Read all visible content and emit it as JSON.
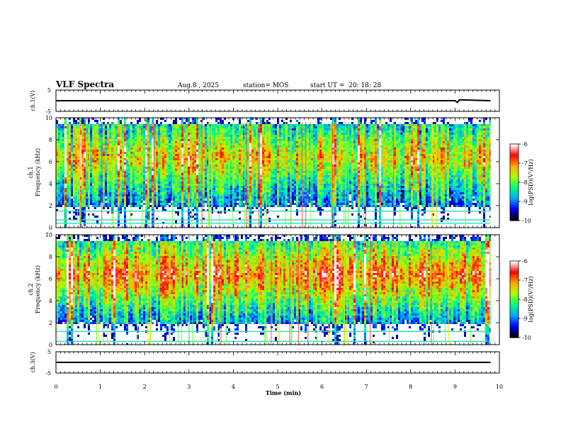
{
  "header": {
    "title": "VLF Spectra",
    "date": "Aug.8 , 2025",
    "station": "station= MOS",
    "start": "start UT =  20: 18: 28"
  },
  "chart_data": [
    {
      "type": "line",
      "panel": "ch.1 voltage",
      "ylabel": "ch.1(V)",
      "ylim": [
        -5,
        5
      ],
      "yticks": [
        "5",
        "-5"
      ],
      "x": [
        0,
        1,
        2,
        3,
        4,
        5,
        6,
        7,
        8,
        9,
        9.05,
        9.1,
        9.8
      ],
      "values": [
        0,
        0,
        0,
        0,
        0,
        0,
        0,
        0,
        0,
        0,
        -0.8,
        0.4,
        0
      ]
    },
    {
      "type": "heatmap",
      "panel": "ch.1 spectrogram",
      "ylabel": "ch.1\nFrequency (kHz)",
      "ylim": [
        0,
        10
      ],
      "yticks": [
        "0",
        "2",
        "4",
        "6",
        "8",
        "10"
      ],
      "xlim": [
        0,
        10
      ],
      "data_end_min": 9.8,
      "band_center_khz": 6.5,
      "noise_lines_khz": [
        0.4,
        0.7,
        1.5
      ],
      "colorbar": {
        "label": "log(PSD)(V²/Hz)",
        "range": [
          -10,
          -6
        ],
        "ticks": [
          "-6",
          "-7",
          "-8",
          "-9",
          "-10"
        ],
        "colors": [
          "#000000",
          "#0000ff",
          "#00aaff",
          "#00ff80",
          "#aaff00",
          "#ffaa00",
          "#ff0000",
          "#ffffff"
        ]
      }
    },
    {
      "type": "heatmap",
      "panel": "ch.2 spectrogram",
      "ylabel": "ch.2\nFrequency (kHz)",
      "ylim": [
        0,
        10
      ],
      "yticks": [
        "0",
        "2",
        "4",
        "6",
        "8",
        "10"
      ],
      "xlim": [
        0,
        10
      ],
      "data_end_min": 9.8,
      "band_center_khz": 6.5,
      "noise_lines_khz": [
        0.3,
        1.2
      ],
      "colorbar": {
        "label": "log(PSD)(V²/Hz)",
        "range": [
          -10,
          -6
        ],
        "ticks": [
          "-6",
          "-7",
          "-8",
          "-9",
          "-10"
        ],
        "colors": [
          "#000000",
          "#0000ff",
          "#00aaff",
          "#00ff80",
          "#aaff00",
          "#ffaa00",
          "#ff0000",
          "#ffffff"
        ]
      }
    },
    {
      "type": "line",
      "panel": "ch.3 voltage",
      "ylabel": "ch.3(V)",
      "ylim": [
        -5,
        5
      ],
      "yticks": [
        "5",
        "-5"
      ],
      "x": [
        0,
        9.8
      ],
      "values": [
        0,
        0
      ]
    }
  ],
  "xaxis": {
    "label": "Time (min)",
    "range": [
      0,
      10
    ],
    "ticks": [
      "0",
      "1",
      "2",
      "3",
      "4",
      "5",
      "6",
      "7",
      "8",
      "9",
      "10"
    ]
  }
}
